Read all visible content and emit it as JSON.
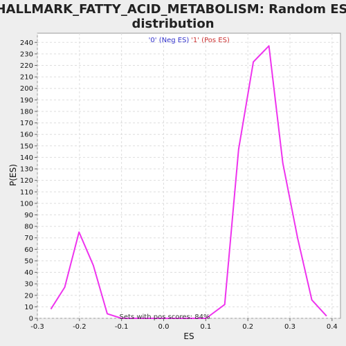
{
  "chart_data": {
    "type": "line",
    "title_line1": "HALLMARK_FATTY_ACID_METABOLISM: Random ES",
    "title_line2": "distribution",
    "xlabel": "ES",
    "ylabel": "P(ES)",
    "xlim": [
      -0.3,
      0.42
    ],
    "ylim": [
      0,
      248
    ],
    "xticks": [
      -0.3,
      -0.2,
      -0.1,
      0.0,
      0.1,
      0.2,
      0.3,
      0.4
    ],
    "xtick_labels": [
      "-0.3",
      "-0.2",
      "-0.1",
      "0.0",
      "0.1",
      "0.2",
      "0.3",
      "0.4"
    ],
    "yticks": [
      0,
      10,
      20,
      30,
      40,
      50,
      60,
      70,
      80,
      90,
      100,
      110,
      120,
      130,
      140,
      150,
      160,
      170,
      180,
      190,
      200,
      210,
      220,
      230,
      240
    ],
    "grid": true,
    "legend": [
      {
        "label": "'0' (Neg ES)",
        "color": "#3333cc"
      },
      {
        "label": "'1' (Pos ES)",
        "color": "#cc3333"
      }
    ],
    "annotation": "Sets with pos scores: 84%",
    "series": [
      {
        "color": "#ee33ee",
        "x": [
          -0.268,
          -0.235,
          -0.201,
          -0.167,
          -0.134,
          -0.1,
          -0.066,
          -0.033,
          0.0,
          0.034,
          0.068,
          0.101,
          0.145,
          0.178,
          0.213,
          0.25,
          0.283,
          0.318,
          0.352,
          0.387
        ],
        "y": [
          8,
          27,
          75,
          46,
          4,
          0,
          0,
          0,
          0,
          0,
          0,
          0,
          12,
          147,
          223,
          237,
          135,
          70,
          16,
          2
        ]
      }
    ]
  }
}
